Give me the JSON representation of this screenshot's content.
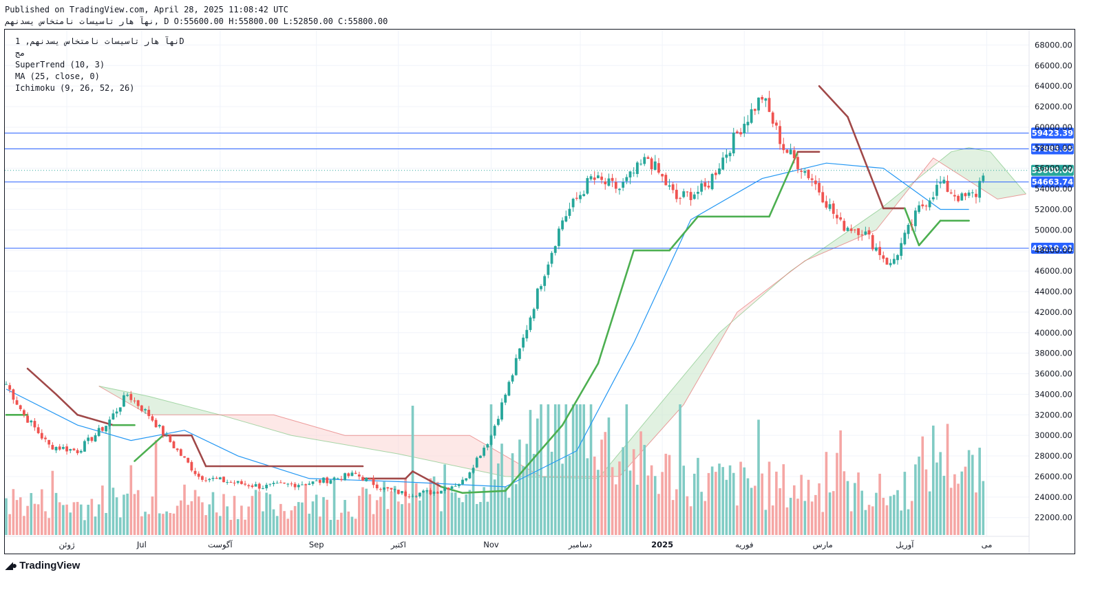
{
  "header": {
    "published": "Published on TradingView.com, April 28, 2025 11:08:42 UTC",
    "ohlc": "نهآ هار تاسیسات نامتخاس یسدنهم, D O:55600.00 H:55800.00 L:52850.00 C:55800.00"
  },
  "legend": {
    "symbol": "نهآ هار تاسیسات نامتخاس یسدنهم, 1D",
    "exchange": "مج",
    "indicators": [
      "SuperTrend (10, 3)",
      "MA (25, close, 0)",
      "Ichimoku (9, 26, 52, 26)"
    ]
  },
  "brand": {
    "name": "TradingView"
  },
  "colors": {
    "up": "#26a69a",
    "down": "#ef5350",
    "supertrend_up": "#4caf50",
    "supertrend_down": "#a04848",
    "ma": "#2196f3",
    "hline": "#2962ff",
    "last_price": "#26a69a",
    "cloud_bull": "#c8e6c9",
    "cloud_bear": "#fbd5d3"
  },
  "chart_data": {
    "type": "candlestick",
    "y_axis": {
      "range": [
        18500,
        69500
      ],
      "ticks": [
        "68000.00",
        "66000.00",
        "64000.00",
        "62000.00",
        "60000.00",
        "58000.00",
        "56000.00",
        "54000.00",
        "52000.00",
        "50000.00",
        "48000.00",
        "46000.00",
        "44000.00",
        "42000.00",
        "40000.00",
        "38000.00",
        "36000.00",
        "34000.00",
        "32000.00",
        "30000.00",
        "28000.00",
        "26000.00",
        "24000.00",
        "22000.00"
      ]
    },
    "x_axis": {
      "labels": [
        "ژوئن",
        "Jul",
        "آگوست",
        "Sep",
        "اکتبر",
        "Nov",
        "دسامبر",
        "2025",
        "فوریه",
        "مارس",
        "آوریل",
        "می"
      ]
    },
    "horizontal_lines": [
      {
        "label": "59423.39",
        "value": 59423.39
      },
      {
        "label": "57885.65",
        "value": 57885.65
      },
      {
        "label": "54663.74",
        "value": 54663.74
      },
      {
        "label": "48219.91",
        "value": 48219.91
      }
    ],
    "last_price": {
      "label": "55800.00",
      "value": 55800
    },
    "price_path": [
      [
        0,
        35000
      ],
      [
        5,
        32000
      ],
      [
        12,
        29000
      ],
      [
        20,
        28500
      ],
      [
        28,
        31000
      ],
      [
        34,
        34000
      ],
      [
        40,
        32000
      ],
      [
        48,
        28500
      ],
      [
        54,
        26000
      ],
      [
        62,
        25500
      ],
      [
        72,
        25000
      ],
      [
        86,
        25400
      ],
      [
        98,
        26200
      ],
      [
        106,
        24800
      ],
      [
        112,
        24300
      ],
      [
        120,
        24500
      ],
      [
        128,
        25500
      ],
      [
        136,
        30000
      ],
      [
        142,
        36000
      ],
      [
        150,
        45000
      ],
      [
        156,
        51000
      ],
      [
        164,
        55000
      ],
      [
        172,
        54000
      ],
      [
        180,
        57000
      ],
      [
        188,
        53000
      ],
      [
        196,
        54000
      ],
      [
        206,
        60000
      ],
      [
        212,
        63000
      ],
      [
        218,
        58000
      ],
      [
        226,
        55000
      ],
      [
        234,
        50500
      ],
      [
        240,
        50000
      ],
      [
        248,
        46500
      ],
      [
        256,
        52000
      ],
      [
        262,
        54500
      ],
      [
        268,
        53000
      ],
      [
        272,
        53500
      ],
      [
        274,
        55800
      ]
    ],
    "volume_path": [
      [
        0,
        1.6
      ],
      [
        20,
        1.4
      ],
      [
        40,
        1.8
      ],
      [
        60,
        1.5
      ],
      [
        80,
        1.3
      ],
      [
        100,
        1.5
      ],
      [
        120,
        2.0
      ],
      [
        140,
        3.0
      ],
      [
        150,
        4.5
      ],
      [
        160,
        6.5
      ],
      [
        170,
        4.0
      ],
      [
        180,
        3.0
      ],
      [
        200,
        2.4
      ],
      [
        220,
        2.2
      ],
      [
        240,
        2.0
      ],
      [
        250,
        1.8
      ],
      [
        262,
        4.0
      ],
      [
        268,
        3.0
      ],
      [
        274,
        2.6
      ]
    ],
    "supertrend": [
      [
        0,
        32000
      ],
      [
        6,
        32000
      ],
      [
        6,
        36500
      ],
      [
        14,
        34000
      ],
      [
        20,
        32000
      ],
      [
        30,
        31000
      ],
      [
        36,
        31000
      ],
      [
        36,
        27500
      ],
      [
        44,
        30000
      ],
      [
        52,
        30000
      ],
      [
        56,
        27000
      ],
      [
        100,
        27000
      ],
      [
        100,
        25800
      ],
      [
        112,
        25800
      ],
      [
        114,
        26500
      ],
      [
        122,
        25000
      ],
      [
        128,
        24400
      ],
      [
        140,
        24600
      ],
      [
        146,
        27000
      ],
      [
        156,
        31000
      ],
      [
        166,
        37000
      ],
      [
        176,
        48000
      ],
      [
        186,
        48000
      ],
      [
        194,
        51300
      ],
      [
        214,
        51300
      ],
      [
        222,
        57600
      ],
      [
        228,
        57600
      ],
      [
        228,
        64000
      ],
      [
        236,
        61000
      ],
      [
        246,
        52100
      ],
      [
        252,
        52100
      ],
      [
        256,
        48500
      ],
      [
        262,
        50900
      ],
      [
        270,
        50900
      ]
    ],
    "ma25": [
      [
        0,
        34500
      ],
      [
        20,
        31000
      ],
      [
        35,
        29500
      ],
      [
        50,
        30500
      ],
      [
        65,
        28000
      ],
      [
        85,
        25800
      ],
      [
        110,
        25500
      ],
      [
        140,
        25000
      ],
      [
        160,
        28500
      ],
      [
        176,
        39000
      ],
      [
        192,
        51000
      ],
      [
        212,
        55000
      ],
      [
        230,
        56500
      ],
      [
        246,
        56000
      ],
      [
        262,
        52000
      ],
      [
        270,
        52000
      ]
    ],
    "cloud_a": [
      [
        26,
        34800
      ],
      [
        40,
        33800
      ],
      [
        60,
        32000
      ],
      [
        80,
        30000
      ],
      [
        110,
        28200
      ],
      [
        140,
        26000
      ],
      [
        166,
        25800
      ],
      [
        200,
        40000
      ],
      [
        220,
        46000
      ],
      [
        245,
        52000
      ],
      [
        265,
        57600
      ],
      [
        270,
        58000
      ],
      [
        276,
        57600
      ],
      [
        286,
        53500
      ]
    ],
    "cloud_b": [
      [
        26,
        34800
      ],
      [
        40,
        32000
      ],
      [
        75,
        32000
      ],
      [
        95,
        30000
      ],
      [
        130,
        30000
      ],
      [
        150,
        26000
      ],
      [
        172,
        26000
      ],
      [
        190,
        33000
      ],
      [
        205,
        42000
      ],
      [
        224,
        47000
      ],
      [
        244,
        50000
      ],
      [
        260,
        57000
      ],
      [
        278,
        53000
      ],
      [
        286,
        53500
      ]
    ]
  }
}
